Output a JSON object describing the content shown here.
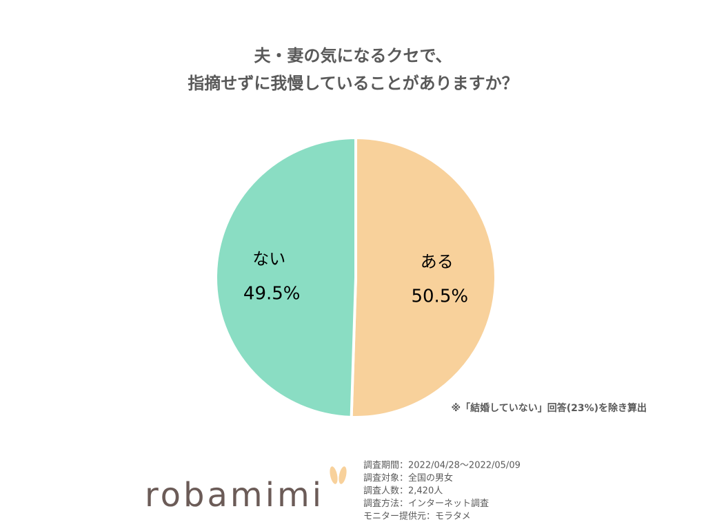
{
  "chart_data": {
    "type": "pie",
    "title": [
      "夫・妻の気になるクセで、",
      "指摘せずに我慢していることがありますか？"
    ],
    "categories": [
      "ある",
      "ない"
    ],
    "values": [
      50.5,
      49.5
    ],
    "value_labels": [
      "50.5%",
      "49.5%"
    ],
    "colors": [
      "#f8d19b",
      "#8addc3"
    ],
    "annotation": "※「結婚していない」回答(23%)を除き算出"
  },
  "footer": {
    "logo": "robamimi",
    "notes": [
      "調査期間：2022/04/28～2022/05/09",
      "調査対象：全国の男女",
      "調査人数：2,420人",
      "調査方法：インターネット調査",
      "モニター提供元：モラタメ"
    ]
  }
}
